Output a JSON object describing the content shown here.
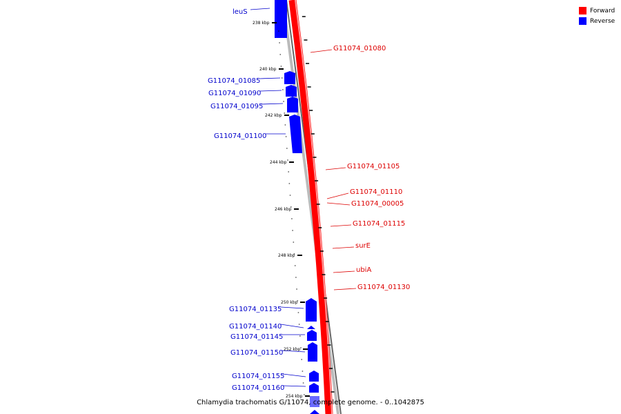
{
  "legend": [
    {
      "label": "Forward",
      "color": "#ff0000"
    },
    {
      "label": "Reverse",
      "color": "#0000ff"
    }
  ],
  "caption": "Chlamydia trachomatis G/11074, complete genome. - 0..1042875",
  "ticks": [
    {
      "label": "238 kbp"
    },
    {
      "label": "240 kbp"
    },
    {
      "label": "242 kbp"
    },
    {
      "label": "244 kbp"
    },
    {
      "label": "246 kbp"
    },
    {
      "label": "248 kbp"
    },
    {
      "label": "250 kbp"
    },
    {
      "label": "252 kbp"
    },
    {
      "label": "254 kbp"
    }
  ],
  "reverse_genes": [
    {
      "label": "leuS"
    },
    {
      "label": "G11074_01085"
    },
    {
      "label": "G11074_01090"
    },
    {
      "label": "G11074_01095"
    },
    {
      "label": "G11074_01100"
    },
    {
      "label": "G11074_01135"
    },
    {
      "label": "G11074_01140"
    },
    {
      "label": "G11074_01145"
    },
    {
      "label": "G11074_01150"
    },
    {
      "label": "G11074_01155"
    },
    {
      "label": "G11074_01160"
    }
  ],
  "forward_genes": [
    {
      "label": "G11074_01080"
    },
    {
      "label": "G11074_01105"
    },
    {
      "label": "G11074_01110"
    },
    {
      "label": "G11074_00005"
    },
    {
      "label": "G11074_01115"
    },
    {
      "label": "surE"
    },
    {
      "label": "ubiA"
    },
    {
      "label": "G11074_01130"
    }
  ]
}
